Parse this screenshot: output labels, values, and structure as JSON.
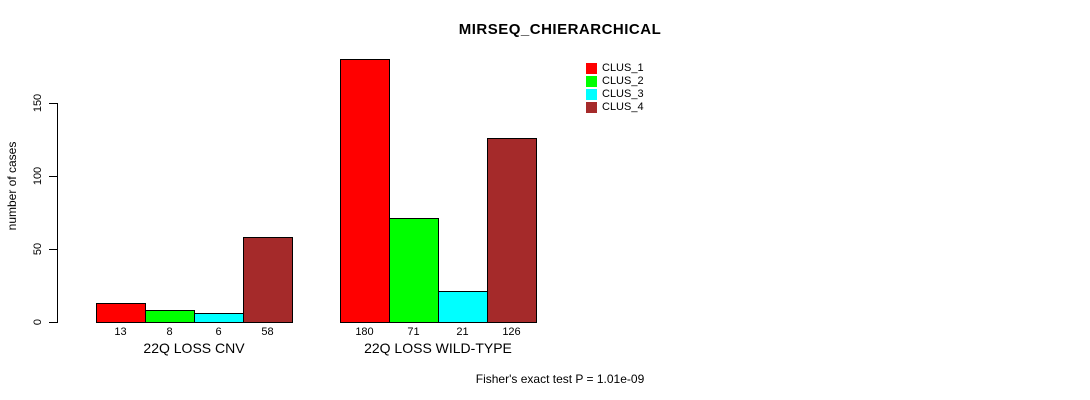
{
  "chart_data": {
    "type": "bar",
    "title": "MIRSEQ_CHIERARCHICAL",
    "ylabel": "number of cases",
    "xlabel": "",
    "annotation": "Fisher's exact test P = 1.01e-09",
    "yticks": [
      0,
      50,
      100,
      150
    ],
    "ylim": [
      0,
      180
    ],
    "grid": false,
    "legend_position": "top-right",
    "series": [
      "CLUS_1",
      "CLUS_2",
      "CLUS_3",
      "CLUS_4"
    ],
    "colors": [
      "#FF0000",
      "#00FF00",
      "#00FFFF",
      "#A52A2A"
    ],
    "groups": [
      {
        "label": "22Q LOSS CNV",
        "values": [
          13,
          8,
          6,
          58
        ]
      },
      {
        "label": "22Q LOSS WILD-TYPE",
        "values": [
          180,
          71,
          21,
          126
        ]
      }
    ]
  }
}
